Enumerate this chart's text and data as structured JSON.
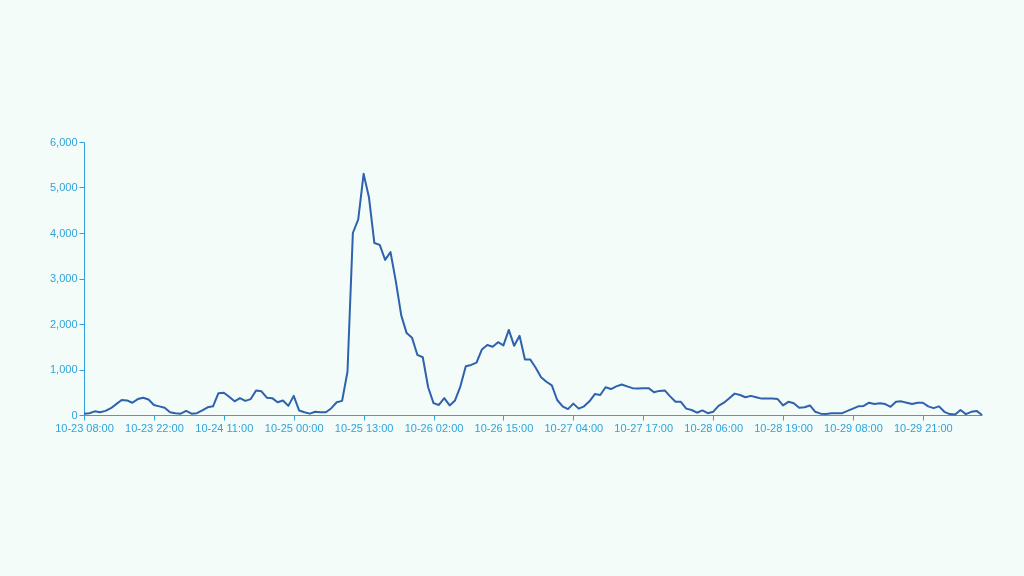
{
  "chart_data": {
    "type": "line",
    "categories": [
      "10-23 08:00",
      null,
      null,
      null,
      null,
      null,
      null,
      null,
      null,
      null,
      null,
      null,
      null,
      "10-23 22:00",
      null,
      null,
      null,
      null,
      null,
      null,
      null,
      null,
      null,
      null,
      null,
      null,
      "10-24 11:00",
      null,
      null,
      null,
      null,
      null,
      null,
      null,
      null,
      null,
      null,
      null,
      null,
      "10-25 00:00",
      null,
      null,
      null,
      null,
      null,
      null,
      null,
      null,
      null,
      null,
      null,
      null,
      "10-25 13:00",
      null,
      null,
      null,
      null,
      null,
      null,
      null,
      null,
      null,
      null,
      null,
      null,
      "10-26 02:00",
      null,
      null,
      null,
      null,
      null,
      null,
      null,
      null,
      null,
      null,
      null,
      null,
      "10-26 15:00",
      null,
      null,
      null,
      null,
      null,
      null,
      null,
      null,
      null,
      null,
      null,
      null,
      "10-27 04:00",
      null,
      null,
      null,
      null,
      null,
      null,
      null,
      null,
      null,
      null,
      null,
      null,
      "10-27 17:00",
      null,
      null,
      null,
      null,
      null,
      null,
      null,
      null,
      null,
      null,
      null,
      null,
      "10-28 06:00",
      null,
      null,
      null,
      null,
      null,
      null,
      null,
      null,
      null,
      null,
      null,
      null,
      "10-28 19:00",
      null,
      null,
      null,
      null,
      null,
      null,
      null,
      null,
      null,
      null,
      null,
      null,
      "10-29 08:00",
      null,
      null,
      null,
      null,
      null,
      null,
      null,
      null,
      null,
      null,
      null,
      null,
      "10-29 21:00",
      null,
      null,
      null,
      null,
      null,
      null,
      null,
      null,
      null,
      null,
      null
    ],
    "series": [
      {
        "color": "#2e62ad",
        "values": [
          30,
          40,
          80,
          60,
          90,
          150,
          240,
          330,
          320,
          270,
          350,
          380,
          340,
          220,
          190,
          160,
          60,
          40,
          30,
          90,
          30,
          40,
          100,
          170,
          190,
          480,
          490,
          400,
          300,
          370,
          310,
          350,
          540,
          520,
          380,
          370,
          280,
          320,
          200,
          420,
          100,
          60,
          30,
          70,
          60,
          60,
          150,
          280,
          310,
          950,
          4000,
          4300,
          5300,
          4780,
          3780,
          3740,
          3410,
          3580,
          2930,
          2190,
          1800,
          1700,
          1320,
          1270,
          610,
          260,
          220,
          370,
          210,
          320,
          630,
          1070,
          1100,
          1150,
          1440,
          1540,
          1500,
          1600,
          1530,
          1870,
          1520,
          1740,
          1220,
          1220,
          1040,
          830,
          730,
          650,
          330,
          190,
          130,
          250,
          140,
          190,
          300,
          460,
          440,
          610,
          570,
          630,
          670,
          630,
          590,
          580,
          590,
          590,
          500,
          530,
          540,
          410,
          290,
          290,
          140,
          110,
          50,
          100,
          40,
          70,
          200,
          270,
          370,
          470,
          440,
          390,
          420,
          390,
          360,
          360,
          360,
          350,
          210,
          290,
          260,
          160,
          170,
          210,
          70,
          30,
          20,
          40,
          40,
          40,
          90,
          140,
          190,
          200,
          270,
          240,
          260,
          240,
          180,
          290,
          300,
          270,
          240,
          270,
          270,
          190,
          150,
          190,
          70,
          20,
          10,
          110,
          20,
          70,
          90,
          0
        ]
      }
    ],
    "ylim": [
      0,
      6000
    ],
    "yticks": [
      0,
      {
        "value": 1000,
        "label": "1,000"
      },
      {
        "value": 2000,
        "label": "2,000"
      },
      {
        "value": 3000,
        "label": "3,000"
      },
      {
        "value": 4000,
        "label": "4,000"
      },
      {
        "value": 5000,
        "label": "5,000"
      },
      {
        "value": 6000,
        "label": "6,000"
      }
    ],
    "grid": false,
    "line_style": "solid"
  }
}
